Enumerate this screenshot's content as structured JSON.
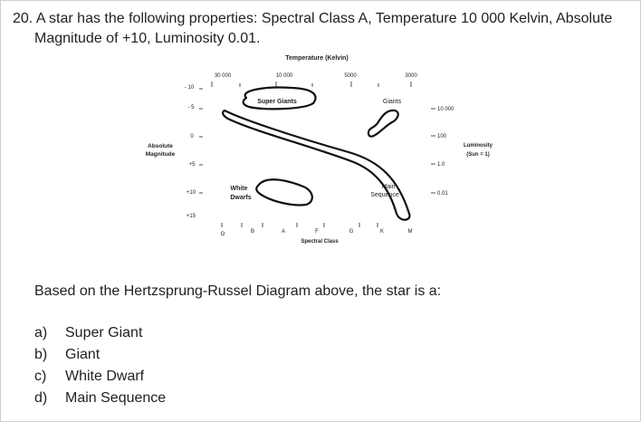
{
  "question": {
    "number": "20.",
    "text_line1": "A star has the following properties: Spectral Class A, Temperature 10 000 Kelvin, Absolute",
    "text_line2": "Magnitude of +10, Luminosity 0.01."
  },
  "diagram": {
    "top_axis_title": "Temperature (Kelvin)",
    "top_ticks": [
      "30 000",
      "10 000",
      "5000",
      "3000"
    ],
    "left_axis_title_line1": "Absolute",
    "left_axis_title_line2": "Magnitude",
    "left_ticks": [
      "- 10",
      "- 5",
      "0",
      "+5",
      "+10",
      "+15"
    ],
    "right_axis_title_line1": "Luminosity",
    "right_axis_title_line2": "(Sun = 1)",
    "right_ticks": [
      "10 000",
      "100",
      "1.0",
      "0.01"
    ],
    "bottom_axis_title": "Spectral Class",
    "spectral_classes": [
      "O",
      "B",
      "A",
      "F",
      "G",
      "K",
      "M"
    ],
    "region_labels": {
      "super_giants": "Super Giants",
      "giants": "Giants",
      "white_dwarfs_line1": "White",
      "white_dwarfs_line2": "Dwarfs",
      "main_sequence_line1": "Main",
      "main_sequence_line2": "Sequence"
    }
  },
  "prompt": "Based on the Hertzsprung-Russel Diagram above, the star is a:",
  "options": [
    {
      "letter": "a)",
      "text": "Super Giant"
    },
    {
      "letter": "b)",
      "text": "Giant"
    },
    {
      "letter": "c)",
      "text": "White Dwarf"
    },
    {
      "letter": "d)",
      "text": "Main Sequence"
    }
  ]
}
